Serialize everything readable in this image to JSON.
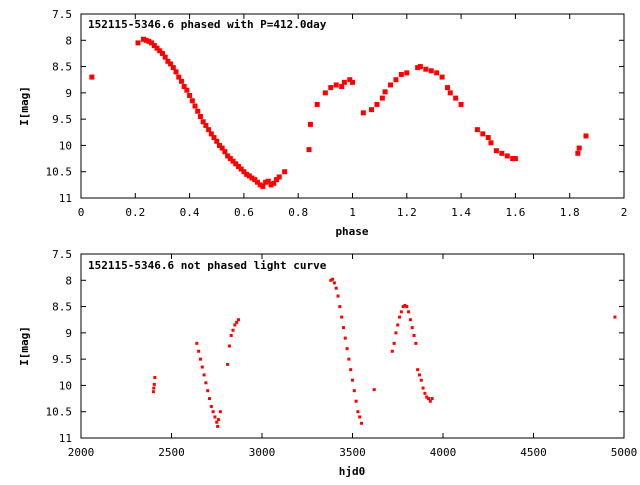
{
  "chart_data": [
    {
      "type": "scatter",
      "title": "152115-5346.6 phased with P=412.0day",
      "xlabel": "phase",
      "ylabel": "I[mag]",
      "xlim": [
        0,
        2
      ],
      "ylim": [
        7.5,
        11
      ],
      "y_inverted": true,
      "x_ticks": [
        "0",
        "0.2",
        "0.4",
        "0.6",
        "0.8",
        "1",
        "1.2",
        "1.4",
        "1.6",
        "1.8",
        "2"
      ],
      "y_ticks": [
        "7.5",
        "8",
        "8.5",
        "9",
        "9.5",
        "10",
        "10.5",
        "11"
      ],
      "grid": false,
      "marker_color": "#ff0000",
      "series": [
        {
          "x": [
            0.04,
            0.21,
            0.23,
            0.24,
            0.25,
            0.26,
            0.27,
            0.28,
            0.29,
            0.3,
            0.31,
            0.32,
            0.33,
            0.34,
            0.35,
            0.36,
            0.37,
            0.38,
            0.39,
            0.4,
            0.41,
            0.42,
            0.43,
            0.44,
            0.45,
            0.46,
            0.47,
            0.48,
            0.49,
            0.5,
            0.51,
            0.52,
            0.53,
            0.54,
            0.55,
            0.56,
            0.57,
            0.58,
            0.59,
            0.6,
            0.61,
            0.62,
            0.63,
            0.64,
            0.65,
            0.66,
            0.67,
            0.68,
            0.69,
            0.7,
            0.71,
            0.72,
            0.73,
            0.75,
            0.84,
            0.845,
            0.87,
            0.9,
            0.92,
            0.94,
            0.96,
            0.97,
            0.99,
            1.0,
            1.04,
            1.07,
            1.09,
            1.11,
            1.12,
            1.14,
            1.16,
            1.18,
            1.2,
            1.24,
            1.25,
            1.27,
            1.29,
            1.31,
            1.33,
            1.35,
            1.36,
            1.38,
            1.4,
            1.46,
            1.48,
            1.5,
            1.51,
            1.53,
            1.55,
            1.57,
            1.59,
            1.6,
            1.83,
            1.835,
            1.86
          ],
          "y": [
            8.7,
            8.05,
            7.98,
            8.0,
            8.02,
            8.05,
            8.1,
            8.15,
            8.2,
            8.25,
            8.32,
            8.4,
            8.45,
            8.52,
            8.6,
            8.7,
            8.78,
            8.88,
            8.95,
            9.05,
            9.15,
            9.25,
            9.35,
            9.45,
            9.55,
            9.62,
            9.7,
            9.78,
            9.85,
            9.92,
            10.0,
            10.05,
            10.12,
            10.2,
            10.25,
            10.3,
            10.35,
            10.4,
            10.45,
            10.5,
            10.55,
            10.58,
            10.62,
            10.65,
            10.7,
            10.75,
            10.78,
            10.7,
            10.68,
            10.75,
            10.72,
            10.65,
            10.6,
            10.5,
            10.08,
            9.6,
            9.22,
            9.0,
            8.9,
            8.85,
            8.88,
            8.8,
            8.75,
            8.8,
            9.38,
            9.32,
            9.22,
            9.1,
            8.98,
            8.85,
            8.75,
            8.65,
            8.62,
            8.52,
            8.5,
            8.55,
            8.58,
            8.62,
            8.7,
            8.9,
            9.0,
            9.1,
            9.22,
            9.7,
            9.78,
            9.85,
            9.95,
            10.1,
            10.15,
            10.2,
            10.25,
            10.25,
            10.15,
            10.05,
            9.82
          ]
        }
      ]
    },
    {
      "type": "scatter",
      "title": "152115-5346.6 not phased light curve",
      "xlabel": "hjd0",
      "ylabel": "I[mag]",
      "xlim": [
        2000,
        5000
      ],
      "ylim": [
        7.5,
        11
      ],
      "y_inverted": true,
      "x_ticks": [
        "2000",
        "2500",
        "3000",
        "3500",
        "4000",
        "4500",
        "5000"
      ],
      "y_ticks": [
        "7.5",
        "8",
        "8.5",
        "9",
        "9.5",
        "10",
        "10.5",
        "11"
      ],
      "grid": false,
      "marker_color": "#ff0000",
      "series": [
        {
          "x": [
            2400,
            2402,
            2405,
            2408,
            2640,
            2650,
            2660,
            2670,
            2680,
            2690,
            2700,
            2710,
            2720,
            2730,
            2740,
            2750,
            2755,
            2760,
            2770,
            2810,
            2820,
            2830,
            2840,
            2850,
            2860,
            2870,
            3380,
            3390,
            3400,
            3410,
            3420,
            3430,
            3440,
            3450,
            3460,
            3470,
            3480,
            3490,
            3500,
            3510,
            3520,
            3530,
            3540,
            3550,
            3620,
            3720,
            3730,
            3740,
            3750,
            3760,
            3770,
            3780,
            3790,
            3800,
            3810,
            3820,
            3830,
            3840,
            3850,
            3860,
            3870,
            3880,
            3890,
            3900,
            3910,
            3920,
            3930,
            3940,
            4950
          ],
          "y": [
            10.12,
            10.05,
            9.98,
            9.85,
            9.2,
            9.35,
            9.5,
            9.65,
            9.8,
            9.95,
            10.1,
            10.25,
            10.4,
            10.5,
            10.6,
            10.7,
            10.78,
            10.65,
            10.5,
            9.6,
            9.25,
            9.05,
            8.95,
            8.85,
            8.8,
            8.75,
            8.0,
            7.98,
            8.05,
            8.15,
            8.3,
            8.5,
            8.7,
            8.9,
            9.1,
            9.3,
            9.5,
            9.7,
            9.9,
            10.1,
            10.3,
            10.5,
            10.6,
            10.72,
            10.08,
            9.35,
            9.2,
            9.0,
            8.85,
            8.7,
            8.6,
            8.5,
            8.48,
            8.5,
            8.6,
            8.75,
            8.9,
            9.05,
            9.2,
            9.7,
            9.8,
            9.9,
            10.05,
            10.15,
            10.22,
            10.25,
            10.3,
            10.25,
            8.7
          ]
        }
      ]
    }
  ]
}
